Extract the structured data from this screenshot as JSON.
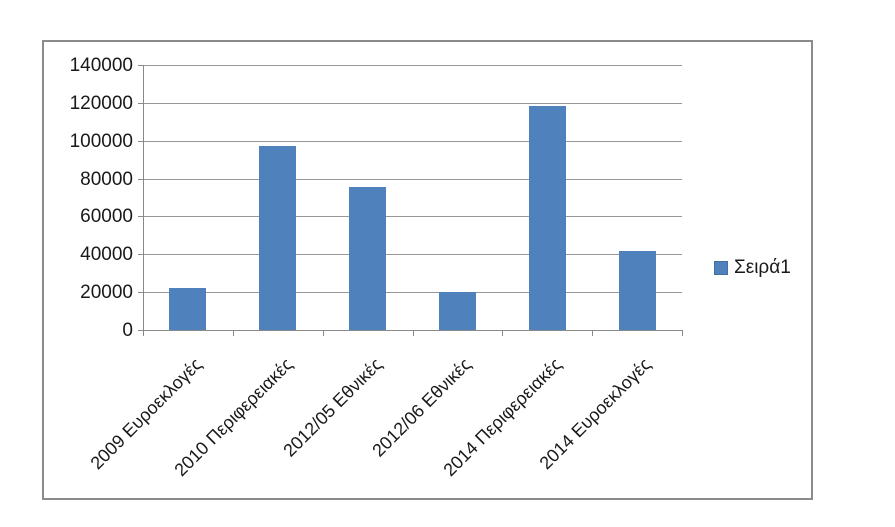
{
  "chart_data": {
    "type": "bar",
    "title": "",
    "categories": [
      "2009 Ευροεκλογές",
      "2010 Περιφερειακές",
      "2012/05 Εθνικές",
      "2012/06 Εθνικές",
      "2014 Περιφερειακές",
      "2014 Ευροεκλογές"
    ],
    "series": [
      {
        "name": "Σειρά1",
        "values": [
          22000,
          97300,
          75600,
          20000,
          118500,
          41500
        ]
      }
    ],
    "xlabel": "",
    "ylabel": "",
    "ylim": [
      0,
      140000
    ],
    "y_ticks": [
      0,
      20000,
      40000,
      60000,
      80000,
      100000,
      120000,
      140000
    ],
    "grid": true,
    "legend_position": "right",
    "x_label_rotation_deg": -45,
    "colors": {
      "bar_fill": "#4f81bd",
      "bar_edge": "#44719f",
      "gridline": "#979797",
      "axis": "#8a8a8a",
      "frame_border": "#8b8b8b",
      "text": "#191919",
      "background": "#ffffff"
    }
  }
}
